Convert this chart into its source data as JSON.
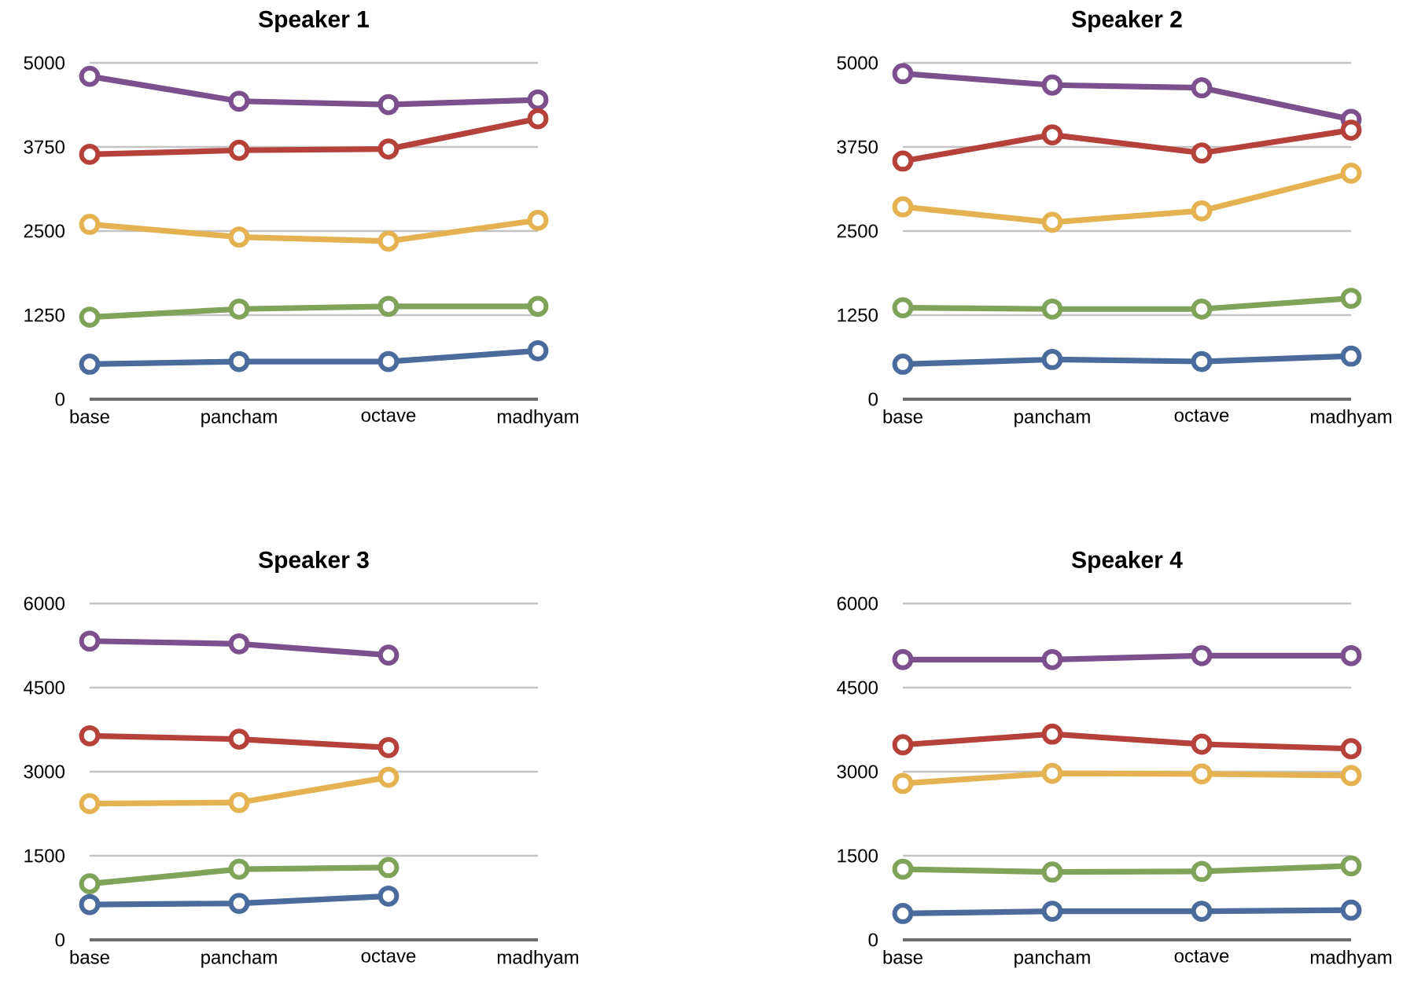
{
  "chart_data": [
    {
      "type": "line",
      "title": "Speaker 1",
      "categories": [
        "base",
        "pancham",
        "octave",
        "madhyam"
      ],
      "series": [
        {
          "color": "#7b508d",
          "values": [
            4800,
            4430,
            4380,
            4450
          ]
        },
        {
          "color": "#b5413a",
          "values": [
            3640,
            3700,
            3720,
            4170
          ]
        },
        {
          "color": "#e4b250",
          "values": [
            2600,
            2410,
            2350,
            2660
          ]
        },
        {
          "color": "#7ea359",
          "values": [
            1220,
            1340,
            1380,
            1380
          ]
        },
        {
          "color": "#4a6b9b",
          "values": [
            520,
            560,
            560,
            720
          ]
        }
      ],
      "ylim": [
        0,
        5000
      ],
      "yticks": [
        0,
        1250,
        2500,
        3750,
        5000
      ],
      "grid": "y",
      "marker": "circle"
    },
    {
      "type": "line",
      "title": "Speaker 2",
      "categories": [
        "base",
        "pancham",
        "octave",
        "madhyam"
      ],
      "series": [
        {
          "color": "#7b508d",
          "values": [
            4840,
            4670,
            4630,
            4160
          ]
        },
        {
          "color": "#b5413a",
          "values": [
            3540,
            3930,
            3660,
            4000
          ]
        },
        {
          "color": "#e4b250",
          "values": [
            2860,
            2630,
            2800,
            3360
          ]
        },
        {
          "color": "#7ea359",
          "values": [
            1360,
            1340,
            1340,
            1500
          ]
        },
        {
          "color": "#4a6b9b",
          "values": [
            520,
            590,
            560,
            640
          ]
        }
      ],
      "ylim": [
        0,
        5000
      ],
      "yticks": [
        0,
        1250,
        2500,
        3750,
        5000
      ],
      "grid": "y",
      "marker": "circle"
    },
    {
      "type": "line",
      "title": "Speaker 3",
      "categories": [
        "base",
        "pancham",
        "octave",
        "madhyam"
      ],
      "series": [
        {
          "color": "#7b508d",
          "values": [
            5330,
            5280,
            5080,
            null
          ]
        },
        {
          "color": "#b5413a",
          "values": [
            3640,
            3580,
            3430,
            null
          ]
        },
        {
          "color": "#e4b250",
          "values": [
            2430,
            2450,
            2900,
            null
          ]
        },
        {
          "color": "#7ea359",
          "values": [
            1000,
            1260,
            1290,
            null
          ]
        },
        {
          "color": "#4a6b9b",
          "values": [
            630,
            650,
            780,
            null
          ]
        }
      ],
      "ylim": [
        0,
        6000
      ],
      "yticks": [
        0,
        1500,
        3000,
        4500,
        6000
      ],
      "grid": "y",
      "marker": "circle"
    },
    {
      "type": "line",
      "title": "Speaker 4",
      "categories": [
        "base",
        "pancham",
        "octave",
        "madhyam"
      ],
      "series": [
        {
          "color": "#7b508d",
          "values": [
            5000,
            5000,
            5070,
            5070
          ]
        },
        {
          "color": "#b5413a",
          "values": [
            3480,
            3670,
            3490,
            3410
          ]
        },
        {
          "color": "#e4b250",
          "values": [
            2790,
            2970,
            2960,
            2930
          ]
        },
        {
          "color": "#7ea359",
          "values": [
            1260,
            1210,
            1220,
            1320
          ]
        },
        {
          "color": "#4a6b9b",
          "values": [
            470,
            510,
            510,
            530
          ]
        }
      ],
      "ylim": [
        0,
        6000
      ],
      "yticks": [
        0,
        1500,
        3000,
        4500,
        6000
      ],
      "grid": "y",
      "marker": "circle"
    }
  ]
}
